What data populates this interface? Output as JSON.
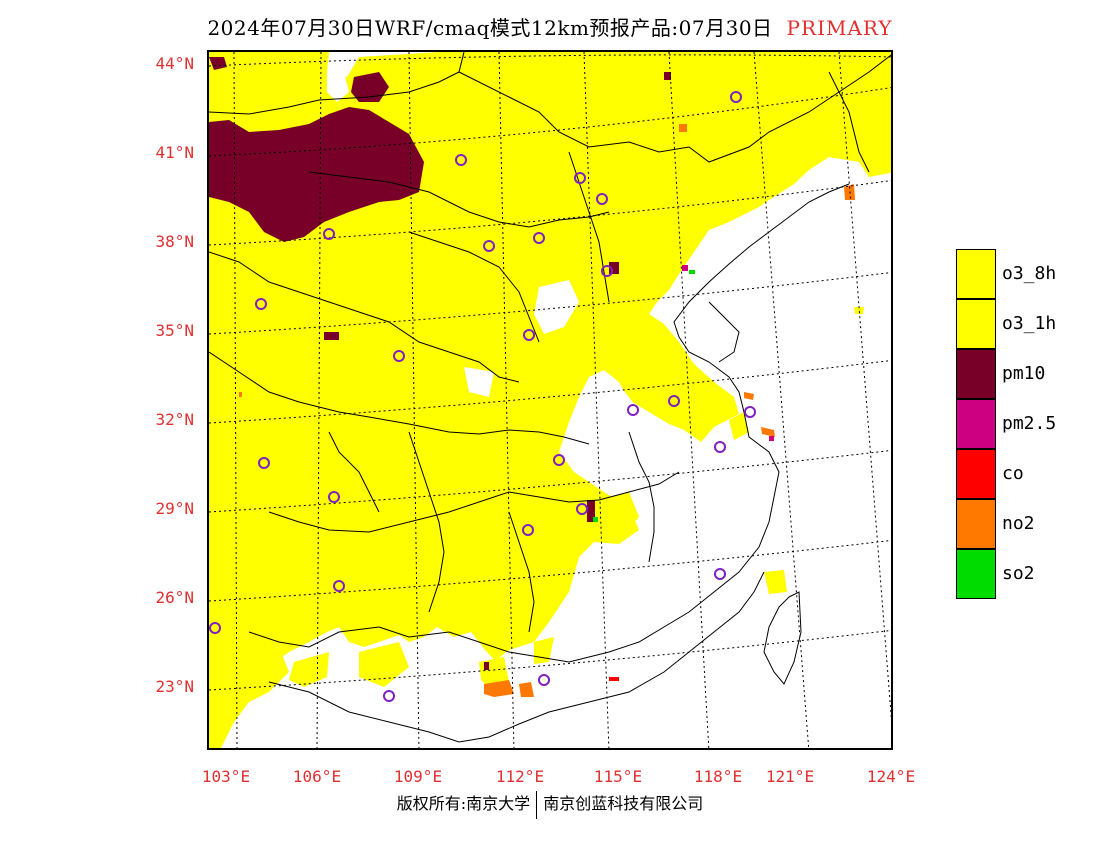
{
  "title": {
    "main": "2024年07月30日WRF/cmaq模式12km预报产品:07月30日",
    "tag": "PRIMARY"
  },
  "map": {
    "lat_labels": [
      "44°N",
      "41°N",
      "38°N",
      "35°N",
      "32°N",
      "29°N",
      "26°N",
      "23°N"
    ],
    "lon_labels": [
      "103°E",
      "106°E",
      "109°E",
      "112°E",
      "115°E",
      "118°E",
      "121°E",
      "124°E"
    ]
  },
  "legend": [
    {
      "label": "o3_8h",
      "color": "#ffff00"
    },
    {
      "label": "o3_1h",
      "color": "#ffff00"
    },
    {
      "label": "pm10",
      "color": "#780028"
    },
    {
      "label": "pm2.5",
      "color": "#cc0080"
    },
    {
      "label": "co",
      "color": "#ff0000"
    },
    {
      "label": "no2",
      "color": "#ff7800"
    },
    {
      "label": "so2",
      "color": "#00dc00"
    }
  ],
  "footer": {
    "left": "版权所有:南京大学",
    "right": "南京创蓝科技有限公司"
  },
  "colors": {
    "o3": "#ffff00",
    "pm10": "#780028",
    "no2": "#ff7800",
    "pm25": "#cc0080",
    "so2": "#00dc00",
    "station": "#8020c0",
    "axis_label": "#e03030"
  }
}
